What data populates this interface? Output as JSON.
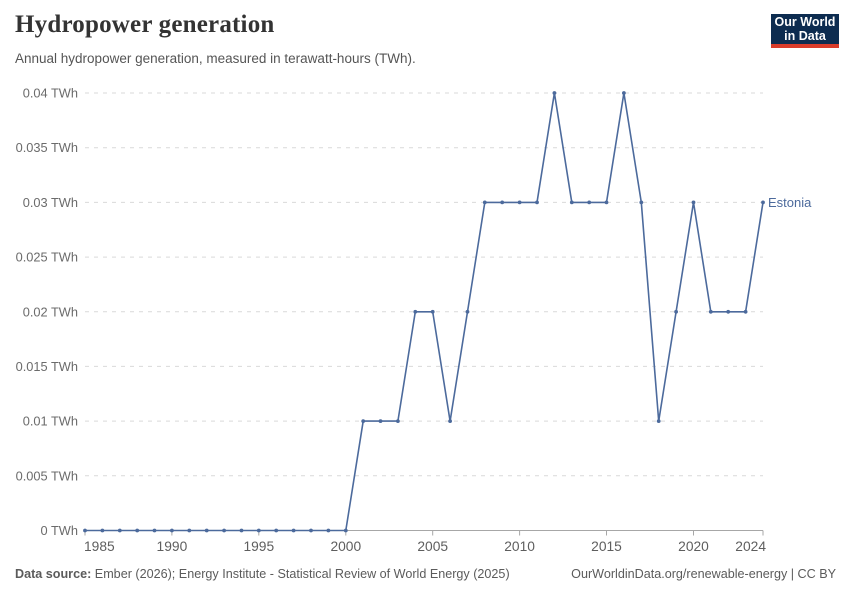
{
  "header": {
    "title": "Hydropower generation",
    "subtitle": "Annual hydropower generation, measured in terawatt-hours (TWh).",
    "logo": {
      "line1": "Our World",
      "line2": "in Data"
    }
  },
  "chart_data": {
    "type": "line",
    "title": "Hydropower generation",
    "xlabel": "",
    "ylabel": "TWh",
    "ylim": [
      0,
      0.04
    ],
    "grid": "dashed horizontal gridlines",
    "legend_position": "right edge entity label",
    "x": [
      1985,
      1986,
      1987,
      1988,
      1989,
      1990,
      1991,
      1992,
      1993,
      1994,
      1995,
      1996,
      1997,
      1998,
      1999,
      2000,
      2001,
      2002,
      2003,
      2004,
      2005,
      2006,
      2007,
      2008,
      2009,
      2010,
      2011,
      2012,
      2013,
      2014,
      2015,
      2016,
      2017,
      2018,
      2019,
      2020,
      2021,
      2022,
      2023,
      2024
    ],
    "series": [
      {
        "name": "Estonia",
        "color": "#4c6a9c",
        "values": [
          0,
          0,
          0,
          0,
          0,
          0,
          0,
          0,
          0,
          0,
          0,
          0,
          0,
          0,
          0,
          0,
          0.01,
          0.01,
          0.01,
          0.02,
          0.02,
          0.01,
          0.02,
          0.03,
          0.03,
          0.03,
          0.03,
          0.04,
          0.03,
          0.03,
          0.03,
          0.04,
          0.03,
          0.01,
          0.02,
          0.03,
          0.02,
          0.02,
          0.02,
          0.03
        ]
      }
    ],
    "yticks": [
      {
        "value": 0,
        "label": "0 TWh"
      },
      {
        "value": 0.005,
        "label": "0.005 TWh"
      },
      {
        "value": 0.01,
        "label": "0.01 TWh"
      },
      {
        "value": 0.015,
        "label": "0.015 TWh"
      },
      {
        "value": 0.02,
        "label": "0.02 TWh"
      },
      {
        "value": 0.025,
        "label": "0.025 TWh"
      },
      {
        "value": 0.03,
        "label": "0.03 TWh"
      },
      {
        "value": 0.035,
        "label": "0.035 TWh"
      },
      {
        "value": 0.04,
        "label": "0.04 TWh"
      }
    ],
    "xticks": [
      {
        "year": 1985,
        "label": "1985"
      },
      {
        "year": 1990,
        "label": "1990"
      },
      {
        "year": 1995,
        "label": "1995"
      },
      {
        "year": 2000,
        "label": "2000"
      },
      {
        "year": 2005,
        "label": "2005"
      },
      {
        "year": 2010,
        "label": "2010"
      },
      {
        "year": 2015,
        "label": "2015"
      },
      {
        "year": 2020,
        "label": "2020"
      },
      {
        "year": 2024,
        "label": "2024"
      }
    ]
  },
  "footer": {
    "datasource_label": "Data source:",
    "datasource_text": " Ember (2026); Energy Institute - Statistical Review of World Energy (2025)",
    "link_text": "OurWorldinData.org/renewable-energy | CC BY"
  },
  "colors": {
    "accent": "#4c6a9c",
    "grid": "#d9d9d9",
    "axis": "#a7a7a7",
    "logo_navy": "#0d2c50",
    "logo_red": "#d93c2b"
  }
}
